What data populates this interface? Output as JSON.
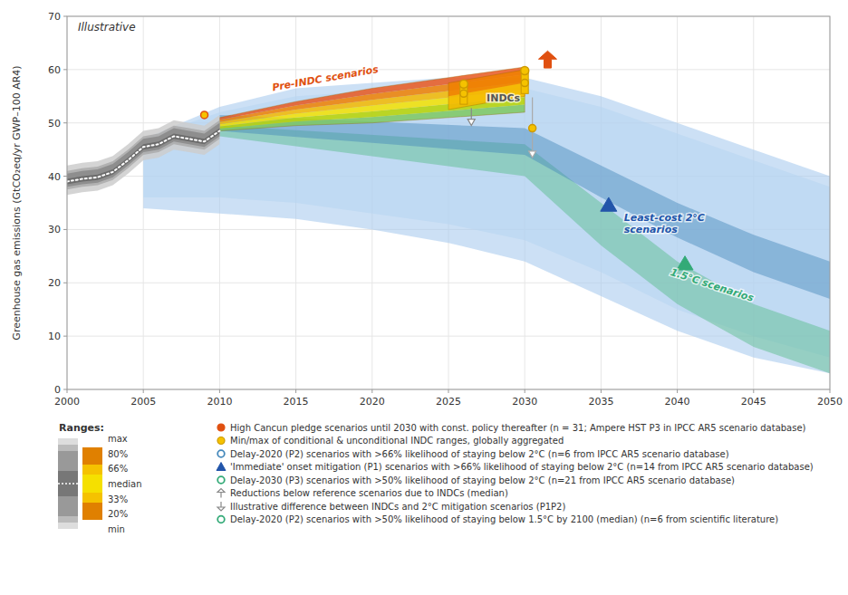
{
  "chart_data": {
    "type": "area",
    "title": "Illustrative",
    "ylabel": "Greenhouse gas emissions (GtCO₂eq/yr GWP–100 AR4)",
    "xlim": [
      2000,
      2050
    ],
    "ylim": [
      0,
      70
    ],
    "xticks": [
      2000,
      2005,
      2010,
      2015,
      2020,
      2025,
      2030,
      2035,
      2040,
      2045,
      2050
    ],
    "yticks": [
      0,
      10,
      20,
      30,
      40,
      50,
      60,
      70
    ],
    "grid": true,
    "legend": "bottom",
    "series": [
      {
        "type": "band",
        "color": "#cde5f5",
        "x": [
          2005,
          2010,
          2015,
          2020,
          2025,
          2030,
          2035,
          2040,
          2045,
          2050
        ],
        "upper": [
          47.0,
          52.0,
          55.0,
          56.0,
          57.0,
          56.5,
          53.0,
          48.0,
          43.0,
          38.0
        ],
        "lower": [
          36.0,
          36.0,
          35.0,
          33.0,
          31.0,
          28.0,
          22.0,
          15.0,
          10.0,
          6.0
        ]
      },
      {
        "type": "band",
        "color": "#aaccee",
        "x": [
          2005,
          2010,
          2015,
          2020,
          2025,
          2030,
          2035,
          2040,
          2045,
          2050
        ],
        "upper": [
          47.0,
          53.0,
          56.5,
          57.5,
          58.5,
          58.5,
          55.0,
          50.0,
          45.0,
          40.0
        ],
        "lower": [
          34.0,
          33.0,
          32.0,
          30.0,
          27.5,
          24.0,
          17.5,
          11.0,
          6.0,
          3.0
        ]
      },
      {
        "type": "band",
        "color": "#55bb88",
        "x": [
          2010,
          2030,
          2035,
          2040,
          2045,
          2050
        ],
        "upper": [
          49.5,
          46.0,
          35.0,
          24.0,
          16.0,
          11.0
        ],
        "lower": [
          47.5,
          40.0,
          27.0,
          16.0,
          8.0,
          3.0
        ]
      },
      {
        "type": "band",
        "color": "#4488bb",
        "x": [
          2010,
          2030,
          2035,
          2040,
          2045,
          2050
        ],
        "upper": [
          51.5,
          49.0,
          42.0,
          35.0,
          29.0,
          24.0
        ],
        "lower": [
          48.5,
          44.0,
          36.0,
          28.5,
          22.0,
          17.0
        ]
      },
      {
        "type": "band",
        "colors": [
          "#7ec860",
          "#b8d400",
          "#f5e200",
          "#f5b800",
          "#f08000",
          "#e85820"
        ],
        "x": [
          2010,
          2015,
          2020,
          2025,
          2030
        ],
        "upper": [
          51.0,
          54.0,
          56.5,
          58.5,
          60.5
        ],
        "lower": [
          48.5,
          49.5,
          50.0,
          51.0,
          52.0
        ]
      },
      {
        "type": "band",
        "colors": [
          "#f5b800",
          "#f08000"
        ],
        "x": [
          2025,
          2030
        ],
        "upper": [
          57.5,
          60.0
        ],
        "lower": [
          52.5,
          55.0
        ]
      },
      {
        "type": "band",
        "color": "#cccccc",
        "x": [
          2000,
          2001,
          2002,
          2003,
          2004,
          2005,
          2006,
          2007,
          2008,
          2009,
          2010
        ],
        "upper": [
          42.0,
          42.5,
          42.8,
          43.8,
          46.0,
          48.5,
          49.0,
          50.5,
          50.0,
          49.5,
          51.5
        ],
        "lower": [
          36.5,
          37.0,
          37.3,
          38.3,
          40.5,
          43.0,
          43.5,
          45.0,
          44.5,
          44.0,
          46.0
        ]
      },
      {
        "type": "band",
        "color": "#aaaaaa",
        "x": [
          2000,
          2001,
          2002,
          2003,
          2004,
          2005,
          2006,
          2007,
          2008,
          2009,
          2010
        ],
        "upper": [
          41.0,
          41.5,
          41.8,
          42.8,
          45.0,
          47.5,
          48.0,
          49.5,
          49.0,
          48.5,
          50.5
        ],
        "lower": [
          37.5,
          38.0,
          38.3,
          39.3,
          41.5,
          44.0,
          44.5,
          46.0,
          45.5,
          45.0,
          47.0
        ]
      },
      {
        "type": "band",
        "color": "#888888",
        "x": [
          2000,
          2001,
          2002,
          2003,
          2004,
          2005,
          2006,
          2007,
          2008,
          2009,
          2010
        ],
        "upper": [
          40.5,
          41.0,
          41.3,
          42.3,
          44.5,
          47.0,
          47.5,
          49.0,
          48.5,
          48.0,
          50.0
        ],
        "lower": [
          38.0,
          38.5,
          38.8,
          39.8,
          42.0,
          44.5,
          45.0,
          46.5,
          46.0,
          45.5,
          47.5
        ]
      },
      {
        "type": "band",
        "color": "#666666",
        "x": [
          2000,
          2001,
          2002,
          2003,
          2004,
          2005,
          2006,
          2007,
          2008,
          2009,
          2010
        ],
        "upper": [
          39.5,
          40.0,
          40.3,
          41.3,
          43.5,
          46.0,
          46.5,
          48.0,
          47.5,
          47.0,
          49.0
        ],
        "lower": [
          38.5,
          39.0,
          39.3,
          40.3,
          42.5,
          45.0,
          45.5,
          47.0,
          46.5,
          46.0,
          48.0
        ]
      },
      {
        "type": "line",
        "color": "#ffffff",
        "line_style": "dotted",
        "x": [
          2000,
          2001,
          2002,
          2003,
          2004,
          2005,
          2006,
          2007,
          2008,
          2009,
          2010
        ],
        "values": [
          39.0,
          39.5,
          39.8,
          40.8,
          43.0,
          45.5,
          46.0,
          47.5,
          47.0,
          46.5,
          48.5
        ]
      }
    ],
    "ranges": [
      {
        "x": 2026.0,
        "lower": 53.5,
        "upper": 57.5,
        "point": 57.3,
        "color": "#f5c200"
      },
      {
        "x": 2030.0,
        "lower": 55.5,
        "upper": 60.0,
        "point": 59.8,
        "color": "#f5c200"
      }
    ],
    "points": [
      {
        "x": 2009,
        "y": 51.5,
        "marker": "circle",
        "color": "#f5c200"
      },
      {
        "x": 2026.0,
        "y": 55.5,
        "marker": "circle",
        "color": "#f5c200"
      },
      {
        "x": 2030.0,
        "y": 57.5,
        "marker": "circle",
        "color": "#f5c200"
      },
      {
        "x": 2030.5,
        "y": 49.0,
        "marker": "circle",
        "color": "#f5c200"
      },
      {
        "x": 2035.5,
        "y": 34.5,
        "marker": "triangle",
        "color": "#2255aa"
      },
      {
        "x": 2040.5,
        "y": 23.5,
        "marker": "triangle",
        "color": "#33aa77"
      }
    ],
    "arrows": [
      {
        "x": 2031.5,
        "from": 60.3,
        "to": 63.5,
        "color": "#e05010"
      },
      {
        "x": 2026.5,
        "from": 52.8,
        "to": 49.5,
        "color": "#888888"
      },
      {
        "x": 2030.5,
        "from": 54.8,
        "to": 43.5,
        "color": "#aaaaaa"
      }
    ],
    "annotations": [
      {
        "text": "Pre-INDC scenarios",
        "x": 2013.5,
        "y": 56.0,
        "color": "#e05010"
      },
      {
        "text": "INDCs",
        "x": 2027.5,
        "y": 54.0,
        "color": "#555555"
      },
      {
        "text": "Least-cost 2°C\nscenarios",
        "x": 2036.5,
        "y": 33.5,
        "color": "#2255aa"
      },
      {
        "text": "1.5°C scenarios",
        "x": 2039.5,
        "y": 21.5,
        "color": "#33aa77"
      }
    ],
    "inset": {
      "title": "Ranges:",
      "labels": [
        "max",
        "80%",
        "66%",
        "median",
        "33%",
        "20%",
        "min"
      ]
    },
    "legend_items": [
      {
        "label": "High Cancun pledge scenarios until 2030 with const. policy thereafter (n = 31; Ampere HST P3 in IPCC AR5 scenario database)",
        "marker": "circle",
        "color": "#e05010"
      },
      {
        "label": "Min/max of conditional & unconditional INDC ranges, globally aggregated",
        "marker": "circle",
        "color": "#f5c200"
      },
      {
        "label": "Delay-2020 (P2) scenarios with >66% likelihood of staying below 2°C (n=6 from IPCC AR5 scenario database)",
        "marker": "circle-open",
        "color": "#4488bb"
      },
      {
        "label": "'Immediate' onset mitigation (P1) scenarios with >66% likelihood of staying below 2°C (n=14 from IPCC AR5 scenario database)",
        "marker": "triangle",
        "color": "#2255aa"
      },
      {
        "label": "Delay-2030 (P3) scenarios with >50% likelihood of staying below 2°C (n=21 from IPCC AR5 scenario database)",
        "marker": "circle-open",
        "color": "#33aa77"
      },
      {
        "label": "Reductions below reference scenarios due to INDCs (median)",
        "marker": "arrow-up",
        "color": "#888888"
      },
      {
        "label": "Illustrative difference between INDCs and 2°C mitigation scenarios (P1P2)",
        "marker": "arrow-down",
        "color": "#888888"
      },
      {
        "label": "Delay-2020 (P2) scenarios with >50% likelihood of staying below 1.5°C by 2100 (median) (n=6 from scientific literature)",
        "marker": "circle-open",
        "color": "#33aa77"
      }
    ]
  }
}
